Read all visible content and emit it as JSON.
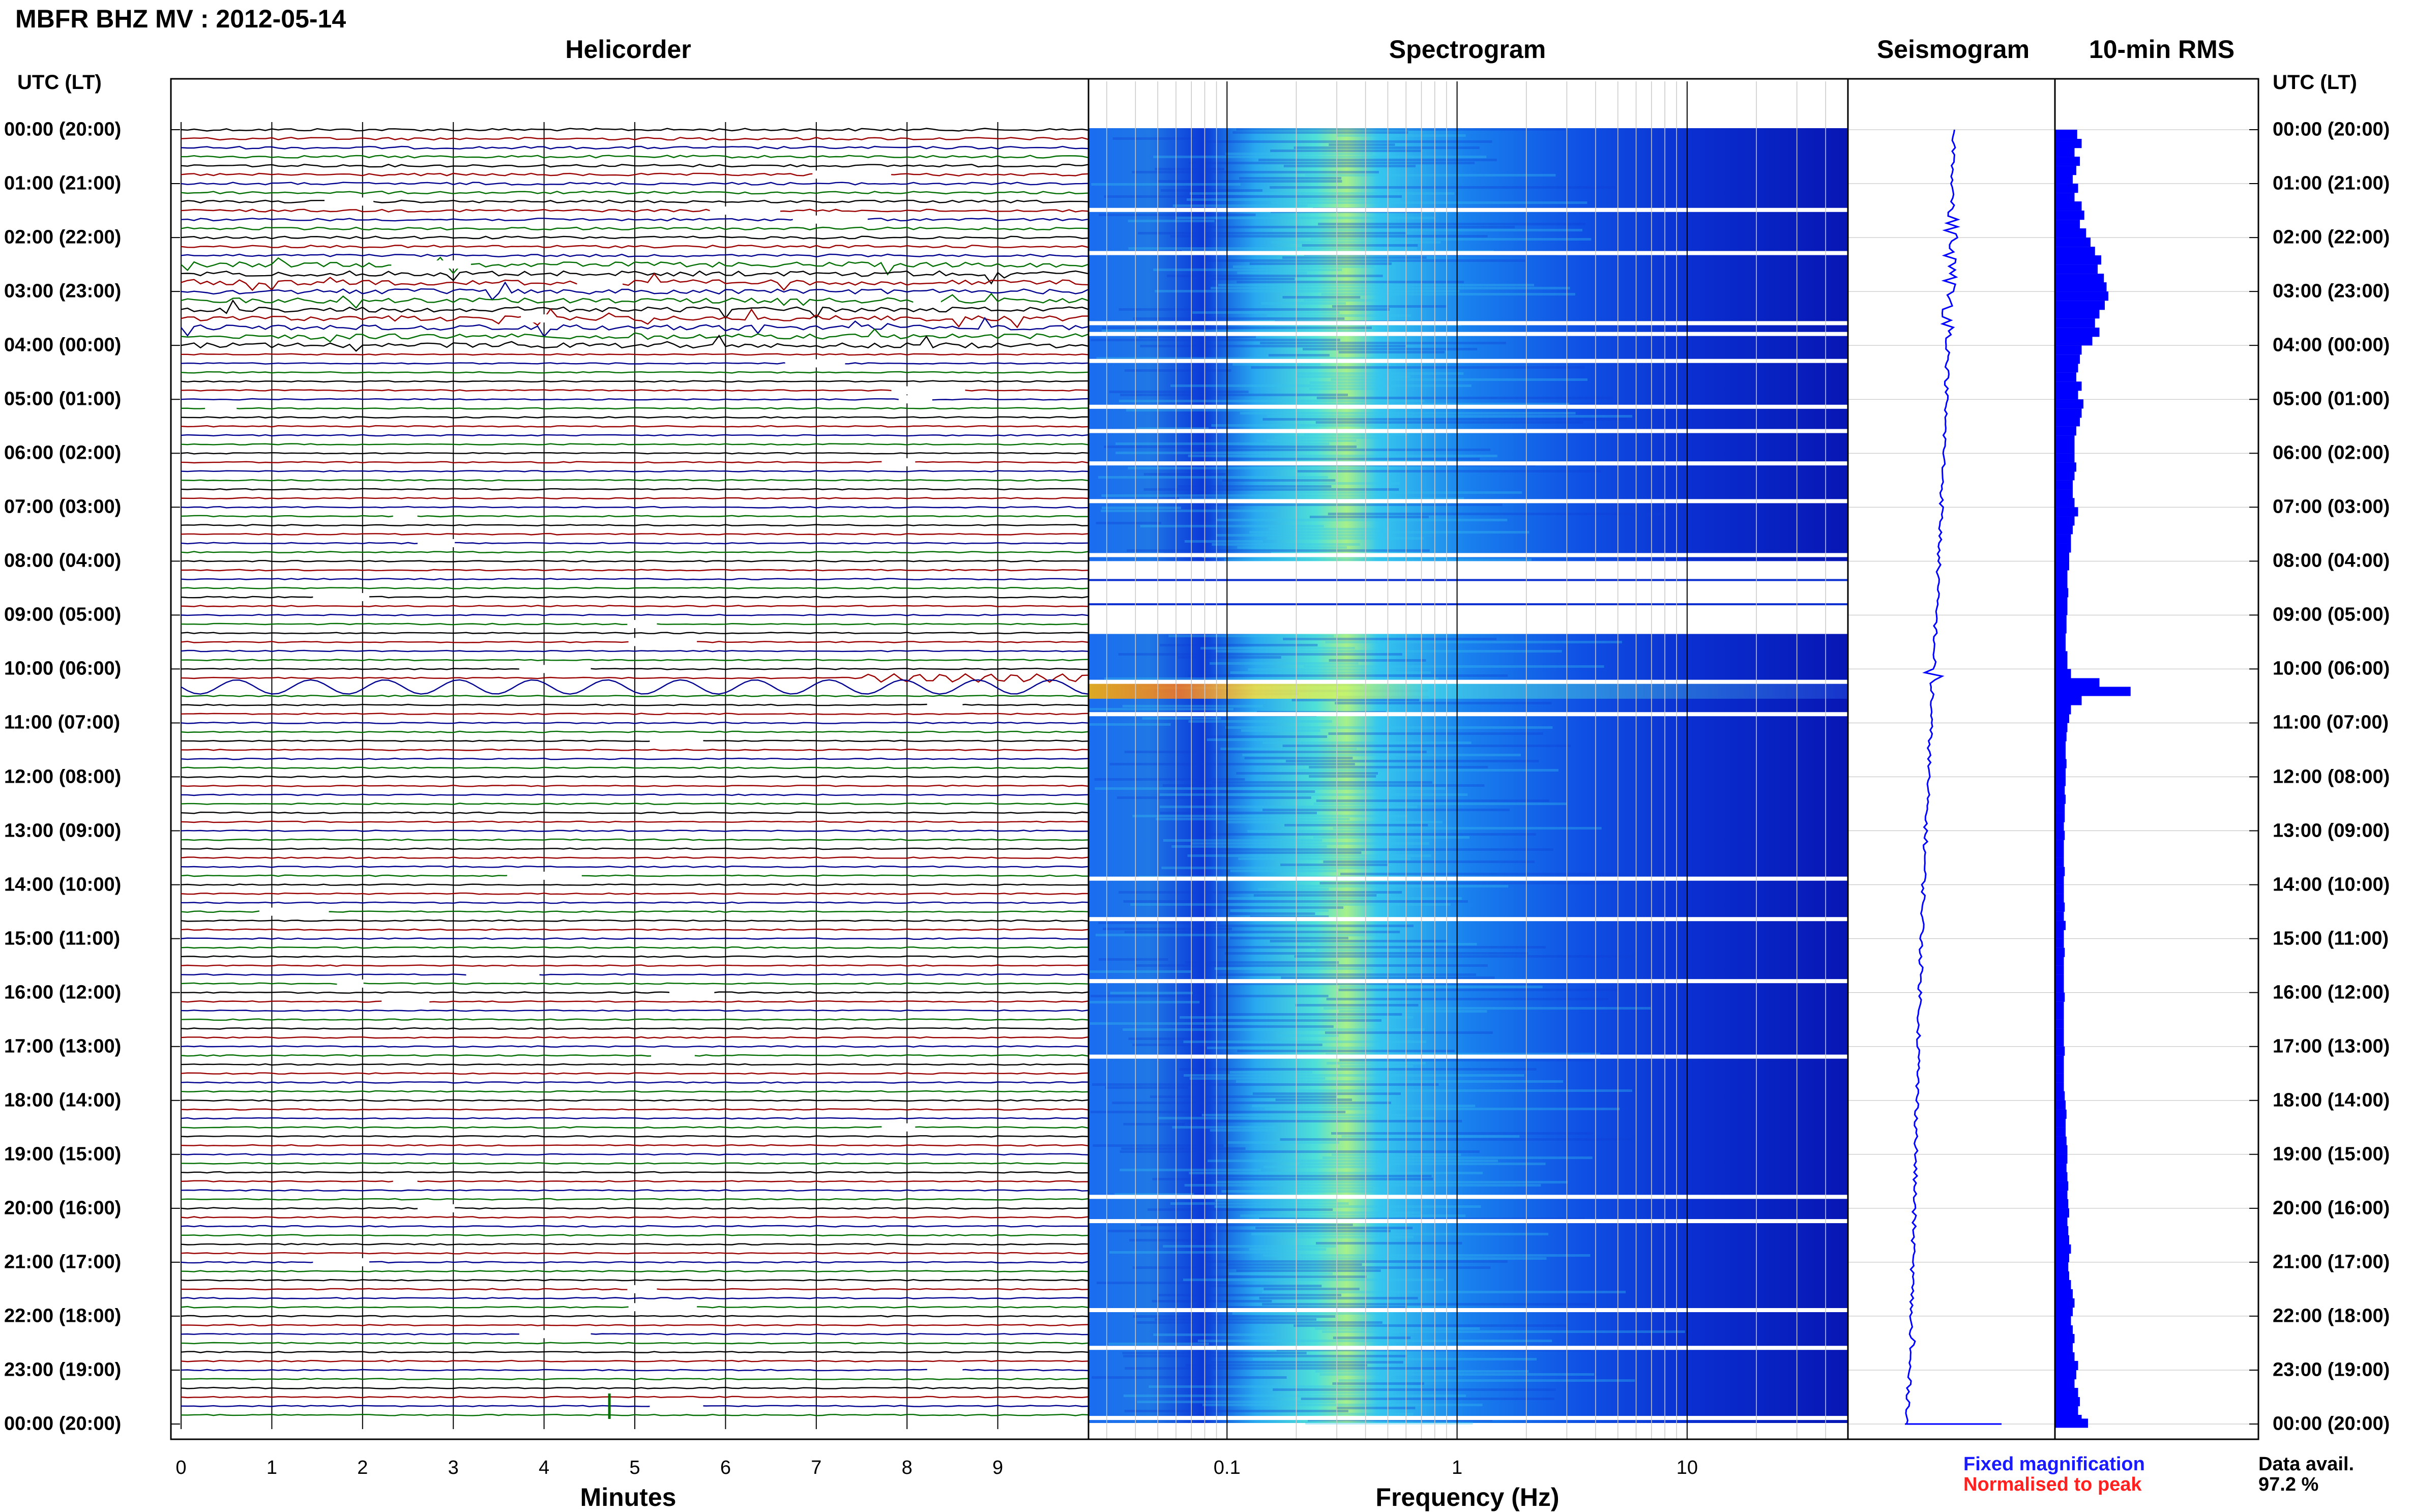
{
  "title": "MBFR BHZ MV : 2012-05-14",
  "panels": {
    "helicorder": "Helicorder",
    "spectrogram": "Spectrogram",
    "seismogram": "Seismogram",
    "rms": "10-min RMS"
  },
  "utc_header": "UTC (LT)",
  "hour_labels": [
    "00:00 (20:00)",
    "01:00 (21:00)",
    "02:00 (22:00)",
    "03:00 (23:00)",
    "04:00 (00:00)",
    "05:00 (01:00)",
    "06:00 (02:00)",
    "07:00 (03:00)",
    "08:00 (04:00)",
    "09:00 (05:00)",
    "10:00 (06:00)",
    "11:00 (07:00)",
    "12:00 (08:00)",
    "13:00 (09:00)",
    "14:00 (10:00)",
    "15:00 (11:00)",
    "16:00 (12:00)",
    "17:00 (13:00)",
    "18:00 (14:00)",
    "19:00 (15:00)",
    "20:00 (16:00)",
    "21:00 (17:00)",
    "22:00 (18:00)",
    "23:00 (19:00)",
    "00:00 (20:00)"
  ],
  "x_axis": {
    "minutes_title": "Minutes",
    "minutes_ticks": [
      "0",
      "1",
      "2",
      "3",
      "4",
      "5",
      "6",
      "7",
      "8",
      "9"
    ],
    "frequency_title": "Frequency (Hz)",
    "frequency_ticks": [
      "0.1",
      "1",
      "10"
    ]
  },
  "legend": {
    "fixed": "Fixed magnification",
    "normalised": "Normalised to peak",
    "fixed_color": "#1a1aff",
    "normalised_color": "#ff2020",
    "avail_label": "Data avail.",
    "avail_value": "97.2 %"
  },
  "colors": {
    "trace_cycle": [
      "#000000",
      "#9b0000",
      "#00008f",
      "#006e00"
    ],
    "rms_bar": "#0000ff",
    "spectrogram_low": "#0a1ec8",
    "spectrogram_high": "#ffd21e"
  },
  "chart_data": {
    "type": "heatmap",
    "helicorder": {
      "minutes_per_line": 10,
      "lines": 144,
      "xlim": [
        0,
        10
      ],
      "event_times_utc": [
        "10:10",
        "10:20",
        "22:30",
        "23:40"
      ]
    },
    "spectrogram": {
      "x_scale": "log",
      "xlim": [
        0.025,
        50
      ],
      "peak_frequency_hz": 0.25,
      "data_gaps_utc": [
        [
          "08:00",
          "09:20"
        ]
      ]
    },
    "rms_10min": {
      "hours": [
        0,
        0.17,
        0.33,
        0.5,
        0.67,
        0.83,
        1,
        1.17,
        1.33,
        1.5,
        1.67,
        1.83,
        2,
        2.17,
        2.33,
        2.5,
        2.67,
        2.83,
        3,
        3.17,
        3.33,
        3.5,
        3.67,
        3.83,
        4,
        4.17,
        4.33,
        4.5,
        4.67,
        4.83,
        5,
        5.17,
        5.33,
        5.5,
        5.67,
        5.83,
        6,
        6.17,
        6.33,
        6.5,
        6.67,
        6.83,
        7,
        7.17,
        7.33,
        7.5,
        7.67,
        7.83,
        8,
        8.17,
        8.33,
        8.5,
        8.67,
        8.83,
        9,
        9.17,
        9.33,
        9.5,
        9.67,
        9.83,
        10,
        10.17,
        10.33,
        10.5,
        10.67,
        10.83,
        11,
        11.17,
        11.33,
        11.5,
        11.67,
        11.83,
        12,
        12.17,
        12.33,
        12.5,
        12.67,
        12.83,
        13,
        13.17,
        13.33,
        13.5,
        13.67,
        13.83,
        14,
        14.17,
        14.33,
        14.5,
        14.67,
        14.83,
        15,
        15.17,
        15.33,
        15.5,
        15.67,
        15.83,
        16,
        16.17,
        16.33,
        16.5,
        16.67,
        16.83,
        17,
        17.17,
        17.33,
        17.5,
        17.67,
        17.83,
        18,
        18.17,
        18.33,
        18.5,
        18.67,
        18.83,
        19,
        19.17,
        19.33,
        19.5,
        19.67,
        19.83,
        20,
        20.17,
        20.33,
        20.5,
        20.67,
        20.83,
        21,
        21.17,
        21.33,
        21.5,
        21.67,
        21.83,
        22,
        22.17,
        22.33,
        22.5,
        22.67,
        22.83,
        23,
        23.17,
        23.33,
        23.5,
        23.67,
        23.83
      ],
      "values": [
        0.25,
        0.3,
        0.22,
        0.28,
        0.24,
        0.2,
        0.26,
        0.22,
        0.3,
        0.33,
        0.28,
        0.35,
        0.4,
        0.45,
        0.52,
        0.48,
        0.55,
        0.58,
        0.6,
        0.56,
        0.5,
        0.45,
        0.5,
        0.42,
        0.3,
        0.28,
        0.26,
        0.24,
        0.3,
        0.26,
        0.32,
        0.3,
        0.28,
        0.24,
        0.22,
        0.22,
        0.22,
        0.24,
        0.22,
        0.2,
        0.2,
        0.22,
        0.26,
        0.22,
        0.2,
        0.18,
        0.18,
        0.16,
        0.16,
        0.14,
        0.14,
        0.15,
        0.14,
        0.14,
        0.13,
        0.13,
        0.12,
        0.12,
        0.14,
        0.14,
        0.18,
        0.5,
        0.85,
        0.3,
        0.18,
        0.16,
        0.14,
        0.13,
        0.12,
        0.12,
        0.13,
        0.12,
        0.12,
        0.11,
        0.12,
        0.11,
        0.11,
        0.1,
        0.11,
        0.1,
        0.1,
        0.1,
        0.11,
        0.1,
        0.1,
        0.1,
        0.11,
        0.1,
        0.12,
        0.1,
        0.1,
        0.11,
        0.1,
        0.1,
        0.1,
        0.1,
        0.11,
        0.1,
        0.1,
        0.1,
        0.1,
        0.1,
        0.11,
        0.1,
        0.1,
        0.1,
        0.1,
        0.11,
        0.12,
        0.13,
        0.12,
        0.12,
        0.13,
        0.14,
        0.14,
        0.13,
        0.14,
        0.15,
        0.14,
        0.15,
        0.16,
        0.14,
        0.15,
        0.16,
        0.18,
        0.16,
        0.15,
        0.16,
        0.18,
        0.2,
        0.22,
        0.2,
        0.18,
        0.2,
        0.22,
        0.2,
        0.22,
        0.26,
        0.24,
        0.22,
        0.26,
        0.28,
        0.26,
        0.3
      ],
      "ylim": [
        0,
        1
      ]
    }
  }
}
